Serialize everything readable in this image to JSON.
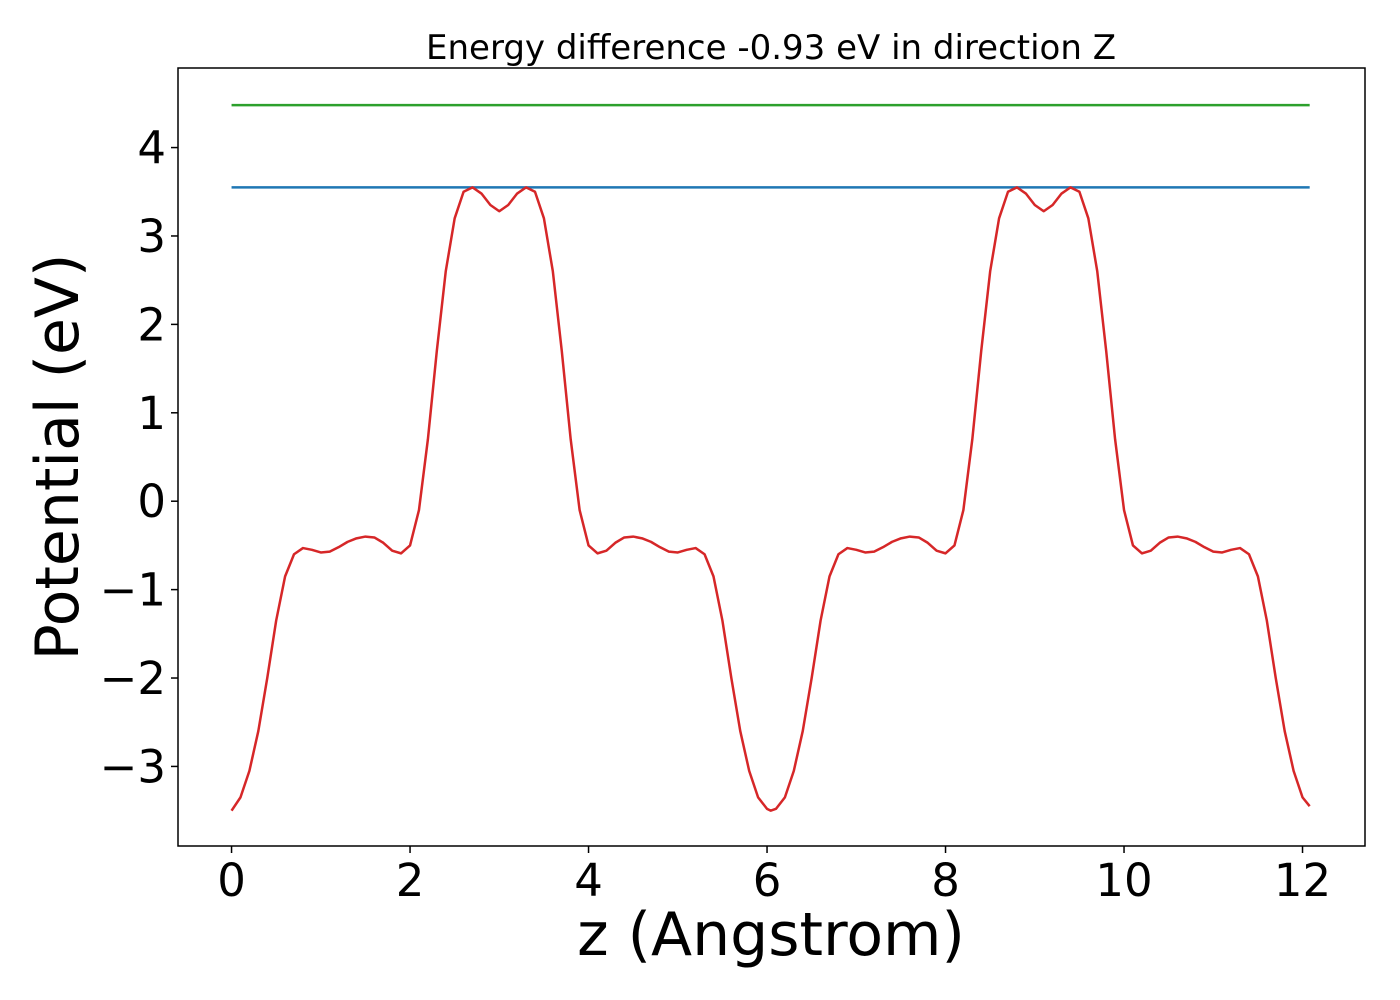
{
  "chart_data": {
    "type": "line",
    "title": "Energy difference -0.93 eV in direction Z",
    "xlabel": "z (Angstrom)",
    "ylabel": "Potential (eV)",
    "xlim": [
      -0.6,
      12.7
    ],
    "ylim": [
      -3.9,
      4.9
    ],
    "xticks": [
      0,
      2,
      4,
      6,
      8,
      10,
      12
    ],
    "xtick_labels": [
      "0",
      "2",
      "4",
      "6",
      "8",
      "10",
      "12"
    ],
    "yticks": [
      -3,
      -2,
      -1,
      0,
      1,
      2,
      3,
      4
    ],
    "ytick_labels": [
      "−3",
      "−2",
      "−1",
      "0",
      "1",
      "2",
      "3",
      "4"
    ],
    "grid": false,
    "series": [
      {
        "color": "#2ca02c",
        "x": [
          0,
          12.08
        ],
        "y": [
          4.48,
          4.48
        ]
      },
      {
        "color": "#1f77b4",
        "x": [
          0,
          12.08
        ],
        "y": [
          3.55,
          3.55
        ]
      },
      {
        "color": "#d62728",
        "x": [
          0.0,
          0.1,
          0.2,
          0.3,
          0.4,
          0.5,
          0.6,
          0.7,
          0.8,
          0.9,
          1.0,
          1.1,
          1.2,
          1.3,
          1.4,
          1.5,
          1.6,
          1.7,
          1.8,
          1.9,
          2.0,
          2.1,
          2.2,
          2.3,
          2.4,
          2.5,
          2.6,
          2.7,
          2.8,
          2.9,
          3.0,
          3.1,
          3.2,
          3.3,
          3.4,
          3.5,
          3.6,
          3.7,
          3.8,
          3.9,
          4.0,
          4.1,
          4.2,
          4.3,
          4.4,
          4.5,
          4.6,
          4.7,
          4.8,
          4.9,
          5.0,
          5.1,
          5.2,
          5.3,
          5.4,
          5.5,
          5.6,
          5.7,
          5.8,
          5.9,
          6.0,
          6.04,
          6.1,
          6.2,
          6.3,
          6.4,
          6.5,
          6.6,
          6.7,
          6.8,
          6.9,
          7.0,
          7.1,
          7.2,
          7.3,
          7.4,
          7.5,
          7.6,
          7.7,
          7.8,
          7.9,
          8.0,
          8.1,
          8.2,
          8.3,
          8.4,
          8.5,
          8.6,
          8.7,
          8.8,
          8.9,
          9.0,
          9.1,
          9.2,
          9.3,
          9.4,
          9.5,
          9.6,
          9.7,
          9.8,
          9.9,
          10.0,
          10.1,
          10.2,
          10.3,
          10.4,
          10.5,
          10.6,
          10.7,
          10.8,
          10.9,
          11.0,
          11.1,
          11.2,
          11.3,
          11.4,
          11.5,
          11.6,
          11.7,
          11.8,
          11.9,
          12.0,
          12.08
        ],
        "y": [
          -3.5,
          -3.35,
          -3.05,
          -2.6,
          -2.0,
          -1.35,
          -0.85,
          -0.6,
          -0.53,
          -0.55,
          -0.58,
          -0.57,
          -0.52,
          -0.46,
          -0.42,
          -0.4,
          -0.41,
          -0.47,
          -0.56,
          -0.59,
          -0.5,
          -0.1,
          0.7,
          1.7,
          2.6,
          3.2,
          3.5,
          3.55,
          3.48,
          3.35,
          3.28,
          3.35,
          3.48,
          3.55,
          3.5,
          3.2,
          2.6,
          1.7,
          0.7,
          -0.1,
          -0.5,
          -0.59,
          -0.56,
          -0.47,
          -0.41,
          -0.4,
          -0.42,
          -0.46,
          -0.52,
          -0.57,
          -0.58,
          -0.55,
          -0.53,
          -0.6,
          -0.85,
          -1.35,
          -2.0,
          -2.6,
          -3.05,
          -3.35,
          -3.48,
          -3.5,
          -3.48,
          -3.35,
          -3.05,
          -2.6,
          -2.0,
          -1.35,
          -0.85,
          -0.6,
          -0.53,
          -0.55,
          -0.58,
          -0.57,
          -0.52,
          -0.46,
          -0.42,
          -0.4,
          -0.41,
          -0.47,
          -0.56,
          -0.59,
          -0.5,
          -0.1,
          0.7,
          1.7,
          2.6,
          3.2,
          3.5,
          3.55,
          3.48,
          3.35,
          3.28,
          3.35,
          3.48,
          3.55,
          3.5,
          3.2,
          2.6,
          1.7,
          0.7,
          -0.1,
          -0.5,
          -0.59,
          -0.56,
          -0.47,
          -0.41,
          -0.4,
          -0.42,
          -0.46,
          -0.52,
          -0.57,
          -0.58,
          -0.55,
          -0.53,
          -0.6,
          -0.85,
          -1.35,
          -2.0,
          -2.6,
          -3.05,
          -3.35,
          -3.45
        ]
      }
    ]
  }
}
